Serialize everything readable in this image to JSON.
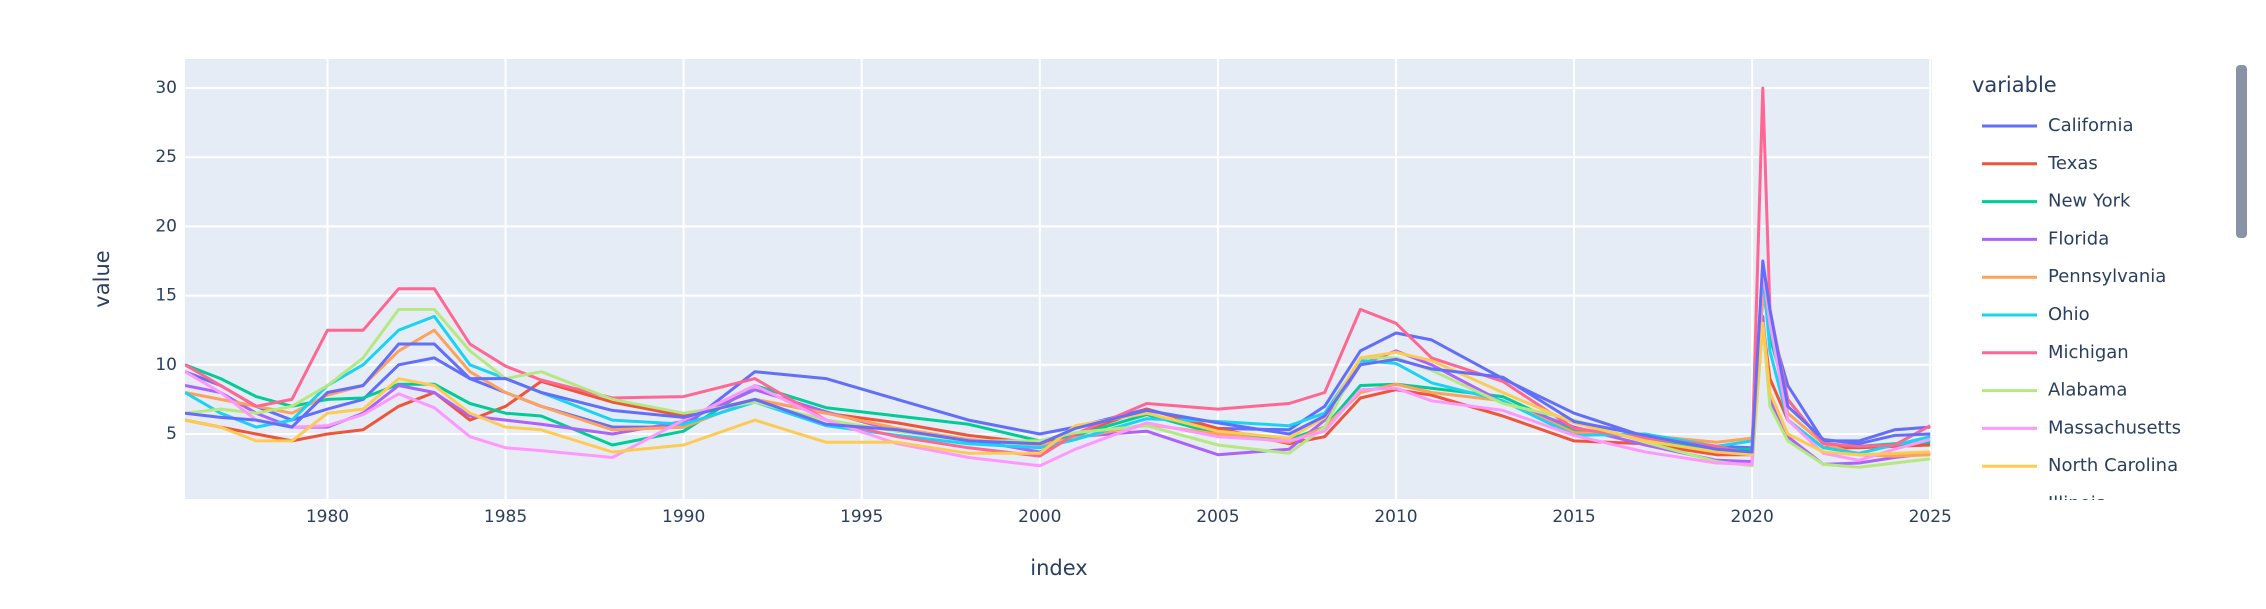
{
  "chart_data": {
    "type": "line",
    "x_label": "index",
    "y_label": "value",
    "legend_title": "variable",
    "xlim": [
      1976,
      2025.05
    ],
    "ylim": [
      0.3,
      32.1
    ],
    "xticks": [
      1980,
      1985,
      1990,
      1995,
      2000,
      2005,
      2010,
      2015,
      2020,
      2025
    ],
    "yticks": [
      5,
      10,
      15,
      20,
      25,
      30
    ],
    "grid": true,
    "legend": "right",
    "x": [
      1976,
      1977,
      1978,
      1979,
      1980,
      1981,
      1982,
      1983,
      1984,
      1985,
      1986,
      1988,
      1990,
      1992,
      1994,
      1996,
      1998,
      2000,
      2001,
      2003,
      2005,
      2007,
      2008,
      2009,
      2010,
      2011,
      2013,
      2015,
      2017,
      2019,
      2020,
      2020.3,
      2020.5,
      2021,
      2022,
      2023,
      2024,
      2025
    ],
    "series": [
      {
        "name": "California",
        "color": "#636efa",
        "values": [
          9.5,
          8.5,
          7,
          6,
          6.8,
          7.5,
          10,
          10.5,
          9,
          8,
          7,
          5.5,
          5.5,
          9.5,
          9,
          7.5,
          6,
          5,
          5.5,
          6.8,
          5.4,
          5.3,
          7,
          11,
          12.3,
          11.8,
          9,
          6.5,
          4.8,
          4.1,
          4,
          15,
          13,
          8.5,
          4.5,
          4.5,
          5.3,
          5.5
        ]
      },
      {
        "name": "Texas",
        "color": "#EF553B",
        "values": [
          6,
          5.5,
          5,
          4.5,
          5,
          5.3,
          7,
          8,
          6,
          7,
          8.8,
          7.3,
          6.3,
          7.5,
          6.5,
          5.8,
          4.9,
          4.3,
          5,
          6.8,
          5.4,
          4.3,
          4.8,
          7.6,
          8.2,
          7.8,
          6.3,
          4.5,
          4.3,
          3.5,
          3.5,
          13,
          9,
          6,
          4,
          4,
          4.1,
          4.2
        ]
      },
      {
        "name": "New York",
        "color": "#00cc96",
        "values": [
          10,
          9,
          7.7,
          7,
          7.5,
          7.6,
          8.6,
          8.6,
          7.2,
          6.5,
          6.3,
          4.2,
          5.2,
          8.5,
          6.9,
          6.3,
          5.7,
          4.5,
          4.9,
          6.4,
          5,
          4.6,
          5.5,
          8.5,
          8.6,
          8.3,
          7.7,
          5.3,
          4.7,
          3.9,
          3.9,
          16,
          12,
          7.5,
          4.3,
          4.1,
          4.3,
          4.4
        ]
      },
      {
        "name": "Florida",
        "color": "#ab63fa",
        "values": [
          8.5,
          8,
          6.5,
          5.5,
          5.5,
          6.5,
          8.5,
          8,
          6.3,
          6,
          5.7,
          5,
          5.9,
          8.2,
          6.6,
          5.2,
          4.6,
          3.7,
          4.8,
          5.2,
          3.5,
          3.9,
          6,
          10,
          11,
          10,
          7.3,
          5.5,
          4.2,
          3.1,
          3,
          13.5,
          7.5,
          4.8,
          2.8,
          2.9,
          3.3,
          3.6
        ]
      },
      {
        "name": "Pennsylvania",
        "color": "#FFA15A",
        "values": [
          8,
          7.5,
          7,
          6.5,
          7.8,
          8.5,
          11,
          12.5,
          9.5,
          8,
          7,
          5.3,
          5.5,
          7.5,
          6.5,
          5.4,
          4.6,
          4.2,
          4.7,
          5.7,
          5,
          4.4,
          5.5,
          8,
          8.6,
          8,
          7.4,
          5.1,
          4.9,
          4.4,
          4.7,
          15,
          13,
          6.5,
          4.3,
          3.5,
          3.4,
          3.5
        ]
      },
      {
        "name": "Ohio",
        "color": "#19d3f3",
        "values": [
          8,
          6.5,
          5.5,
          6,
          8.5,
          10,
          12.5,
          13.5,
          10,
          9,
          8,
          6,
          5.7,
          7.3,
          5.6,
          4.9,
          4.3,
          4,
          4.6,
          6.1,
          5.9,
          5.6,
          6.5,
          10.3,
          10.1,
          8.7,
          7.4,
          4.9,
          5,
          4.1,
          4.5,
          17,
          11,
          6,
          4,
          3.6,
          4.2,
          4.8
        ]
      },
      {
        "name": "Michigan",
        "color": "#FF6692",
        "values": [
          10,
          8.5,
          7,
          7.5,
          12.5,
          12.5,
          15.5,
          15.5,
          11.5,
          9.9,
          8.9,
          7.6,
          7.7,
          9,
          6,
          4.8,
          4,
          3.4,
          5,
          7.2,
          6.8,
          7.2,
          8,
          14,
          13,
          10.5,
          8.8,
          5.4,
          4.7,
          4.1,
          3.6,
          30,
          14,
          7.5,
          4.3,
          4.1,
          4.2,
          5.6
        ]
      },
      {
        "name": "Alabama",
        "color": "#B6E880",
        "values": [
          6.5,
          6.8,
          6.5,
          7,
          8.5,
          10.5,
          14,
          14,
          11,
          9,
          9.5,
          7.5,
          6.5,
          7.3,
          6,
          5.2,
          4.5,
          4.5,
          5.1,
          5.6,
          4.2,
          3.6,
          5.5,
          10.5,
          10.5,
          9.6,
          7.2,
          6,
          4.4,
          3,
          2.7,
          13,
          7,
          4.5,
          2.8,
          2.6,
          2.9,
          3.2
        ]
      },
      {
        "name": "Massachusetts",
        "color": "#FF97FF",
        "values": [
          9.5,
          8,
          6,
          5.5,
          5.6,
          6.4,
          7.9,
          6.9,
          4.8,
          4,
          3.8,
          3.3,
          6,
          8.5,
          6,
          4.3,
          3.3,
          2.7,
          3.9,
          5.8,
          4.8,
          4.5,
          5.2,
          8.2,
          8.3,
          7.4,
          6.7,
          4.9,
          3.7,
          2.9,
          2.8,
          17,
          13,
          6,
          3.6,
          3.1,
          3.9,
          4.6
        ]
      },
      {
        "name": "North Carolina",
        "color": "#FECB52",
        "values": [
          6,
          5.5,
          4.5,
          4.5,
          6.5,
          6.8,
          9,
          8.5,
          6.5,
          5.5,
          5.3,
          3.7,
          4.2,
          6,
          4.4,
          4.4,
          3.6,
          3.6,
          5.6,
          6.5,
          5.2,
          4.7,
          6.2,
          10.5,
          10.9,
          10.3,
          8,
          5.8,
          4.5,
          3.7,
          3.5,
          13,
          8,
          5,
          3.7,
          3.5,
          3.6,
          3.7
        ]
      },
      {
        "name": "Illinois",
        "color": "#636efa",
        "values": [
          6.5,
          6.2,
          6,
          5.5,
          8,
          8.5,
          11.5,
          11.5,
          9,
          9,
          8,
          6.7,
          6.2,
          7.5,
          5.7,
          5.3,
          4.5,
          4.3,
          5.4,
          6.7,
          5.8,
          5,
          6.3,
          10,
          10.4,
          9.7,
          9.1,
          5.9,
          4.9,
          3.9,
          3.7,
          17.5,
          14,
          7,
          4.6,
          4.3,
          4.9,
          5.0
        ]
      }
    ]
  }
}
